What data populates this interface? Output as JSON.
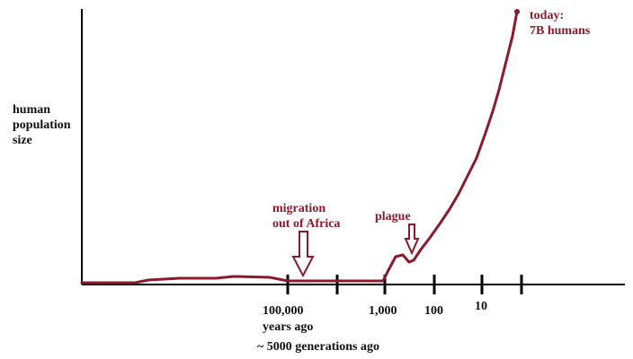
{
  "chart_data": {
    "type": "line",
    "ylabel": [
      "human",
      "population",
      "size"
    ],
    "x_tick_labels": [
      "100,000",
      "1,000",
      "100",
      "10"
    ],
    "x_unit_label": "years ago",
    "x_note": "~ 5000 generations ago",
    "grid": false,
    "legend": "none",
    "series": [
      {
        "values_description": "",
        "x": [
          "start",
          "100,000",
          "1,000",
          "100",
          "10",
          "today"
        ],
        "y": [
          0.005,
          0.01,
          0.01,
          0.09,
          0.37,
          1.0
        ],
        "color": "#8b1a2b"
      }
    ],
    "annotations": [
      {
        "text": [
          "migration",
          "out of Africa"
        ],
        "arrow": true
      },
      {
        "text": [
          "plague"
        ],
        "arrow": true
      },
      {
        "text": [
          "today:",
          "7B humans"
        ],
        "arrow": false
      }
    ]
  }
}
